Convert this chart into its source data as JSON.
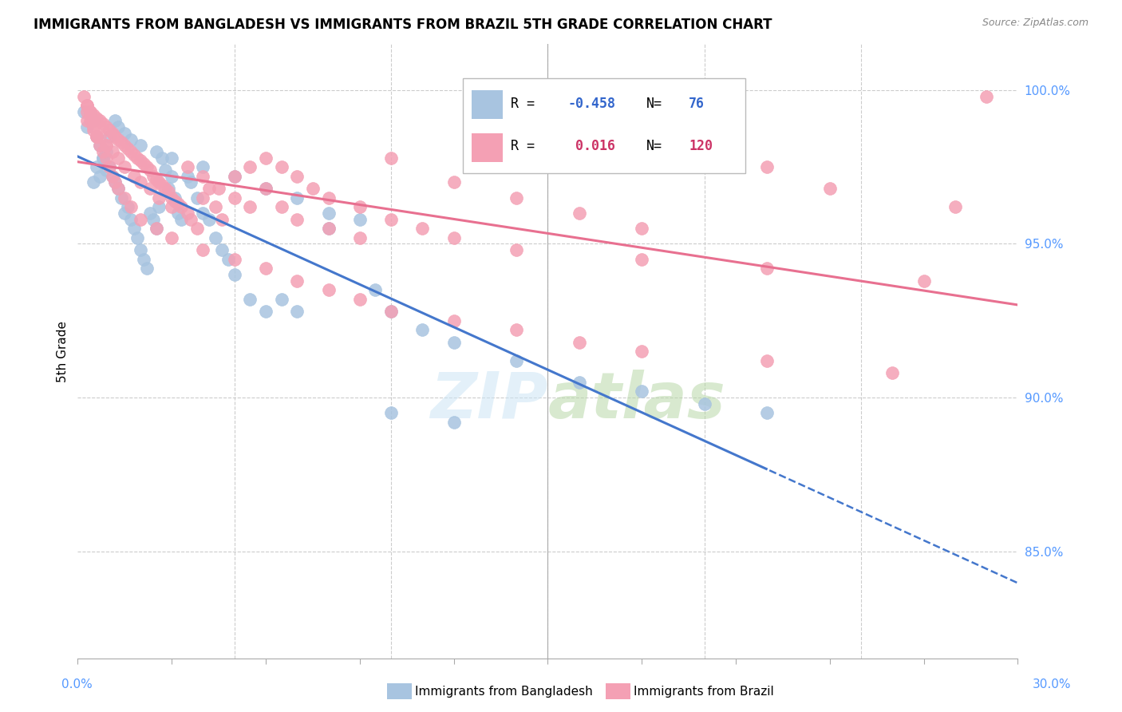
{
  "title": "IMMIGRANTS FROM BANGLADESH VS IMMIGRANTS FROM BRAZIL 5TH GRADE CORRELATION CHART",
  "source": "Source: ZipAtlas.com",
  "ylabel": "5th Grade",
  "ylabel_ticks": [
    "100.0%",
    "95.0%",
    "90.0%",
    "85.0%"
  ],
  "ylabel_tick_vals": [
    1.0,
    0.95,
    0.9,
    0.85
  ],
  "xlim": [
    0.0,
    0.3
  ],
  "ylim": [
    0.815,
    1.015
  ],
  "bangladesh_color": "#a8c4e0",
  "brazil_color": "#f4a0b4",
  "bangladesh_R": -0.458,
  "bangladesh_N": 76,
  "brazil_R": 0.016,
  "brazil_N": 120,
  "bangladesh_line_color": "#4477cc",
  "brazil_line_color": "#e87090",
  "bangladesh_x": [
    0.002,
    0.003,
    0.004,
    0.005,
    0.006,
    0.007,
    0.008,
    0.009,
    0.01,
    0.011,
    0.012,
    0.013,
    0.014,
    0.015,
    0.016,
    0.017,
    0.018,
    0.019,
    0.02,
    0.021,
    0.022,
    0.023,
    0.024,
    0.025,
    0.026,
    0.027,
    0.028,
    0.029,
    0.03,
    0.031,
    0.032,
    0.033,
    0.035,
    0.036,
    0.038,
    0.04,
    0.042,
    0.044,
    0.046,
    0.048,
    0.05,
    0.055,
    0.06,
    0.065,
    0.07,
    0.08,
    0.095,
    0.1,
    0.11,
    0.12,
    0.14,
    0.16,
    0.18,
    0.22,
    0.005,
    0.006,
    0.007,
    0.008,
    0.009,
    0.01,
    0.012,
    0.013,
    0.015,
    0.017,
    0.02,
    0.025,
    0.03,
    0.04,
    0.05,
    0.06,
    0.07,
    0.08,
    0.09,
    0.1,
    0.12,
    0.2
  ],
  "bangladesh_y": [
    0.993,
    0.988,
    0.992,
    0.99,
    0.985,
    0.982,
    0.978,
    0.974,
    0.975,
    0.972,
    0.97,
    0.968,
    0.965,
    0.96,
    0.962,
    0.958,
    0.955,
    0.952,
    0.948,
    0.945,
    0.942,
    0.96,
    0.958,
    0.955,
    0.962,
    0.978,
    0.974,
    0.968,
    0.972,
    0.965,
    0.96,
    0.958,
    0.972,
    0.97,
    0.965,
    0.96,
    0.958,
    0.952,
    0.948,
    0.945,
    0.94,
    0.932,
    0.928,
    0.932,
    0.928,
    0.955,
    0.935,
    0.928,
    0.922,
    0.918,
    0.912,
    0.905,
    0.902,
    0.895,
    0.97,
    0.975,
    0.972,
    0.978,
    0.98,
    0.985,
    0.99,
    0.988,
    0.986,
    0.984,
    0.982,
    0.98,
    0.978,
    0.975,
    0.972,
    0.968,
    0.965,
    0.96,
    0.958,
    0.895,
    0.892,
    0.898
  ],
  "brazil_x": [
    0.002,
    0.003,
    0.004,
    0.005,
    0.006,
    0.007,
    0.008,
    0.009,
    0.01,
    0.011,
    0.012,
    0.013,
    0.014,
    0.015,
    0.016,
    0.017,
    0.018,
    0.019,
    0.02,
    0.021,
    0.022,
    0.023,
    0.024,
    0.025,
    0.026,
    0.027,
    0.028,
    0.029,
    0.03,
    0.031,
    0.032,
    0.033,
    0.035,
    0.036,
    0.038,
    0.04,
    0.042,
    0.044,
    0.046,
    0.05,
    0.055,
    0.06,
    0.065,
    0.07,
    0.08,
    0.09,
    0.1,
    0.12,
    0.14,
    0.16,
    0.18,
    0.2,
    0.22,
    0.24,
    0.28,
    0.003,
    0.004,
    0.005,
    0.006,
    0.007,
    0.008,
    0.009,
    0.01,
    0.011,
    0.012,
    0.013,
    0.015,
    0.017,
    0.02,
    0.025,
    0.03,
    0.04,
    0.05,
    0.06,
    0.07,
    0.08,
    0.09,
    0.1,
    0.12,
    0.14,
    0.16,
    0.18,
    0.22,
    0.26,
    0.003,
    0.005,
    0.007,
    0.009,
    0.011,
    0.013,
    0.015,
    0.018,
    0.02,
    0.023,
    0.026,
    0.03,
    0.035,
    0.04,
    0.045,
    0.05,
    0.055,
    0.06,
    0.065,
    0.07,
    0.075,
    0.08,
    0.09,
    0.1,
    0.11,
    0.12,
    0.14,
    0.18,
    0.22,
    0.27,
    0.29,
    0.003,
    0.004,
    0.005,
    0.006,
    0.009,
    0.01
  ],
  "brazil_y": [
    0.998,
    0.995,
    0.993,
    0.992,
    0.991,
    0.99,
    0.989,
    0.988,
    0.987,
    0.986,
    0.985,
    0.984,
    0.983,
    0.982,
    0.981,
    0.98,
    0.979,
    0.978,
    0.977,
    0.976,
    0.975,
    0.974,
    0.972,
    0.971,
    0.97,
    0.969,
    0.968,
    0.967,
    0.965,
    0.964,
    0.963,
    0.962,
    0.96,
    0.958,
    0.955,
    0.965,
    0.968,
    0.962,
    0.958,
    0.972,
    0.975,
    0.968,
    0.962,
    0.958,
    0.955,
    0.952,
    0.978,
    0.97,
    0.965,
    0.96,
    0.955,
    0.98,
    0.975,
    0.968,
    0.962,
    0.993,
    0.99,
    0.988,
    0.985,
    0.982,
    0.98,
    0.978,
    0.975,
    0.972,
    0.97,
    0.968,
    0.965,
    0.962,
    0.958,
    0.955,
    0.952,
    0.948,
    0.945,
    0.942,
    0.938,
    0.935,
    0.932,
    0.928,
    0.925,
    0.922,
    0.918,
    0.915,
    0.912,
    0.908,
    0.99,
    0.987,
    0.985,
    0.982,
    0.98,
    0.978,
    0.975,
    0.972,
    0.97,
    0.968,
    0.965,
    0.962,
    0.975,
    0.972,
    0.968,
    0.965,
    0.962,
    0.978,
    0.975,
    0.972,
    0.968,
    0.965,
    0.962,
    0.958,
    0.955,
    0.952,
    0.948,
    0.945,
    0.942,
    0.938,
    0.998,
    0.995,
    0.993,
    0.99,
    0.985,
    0.982
  ]
}
